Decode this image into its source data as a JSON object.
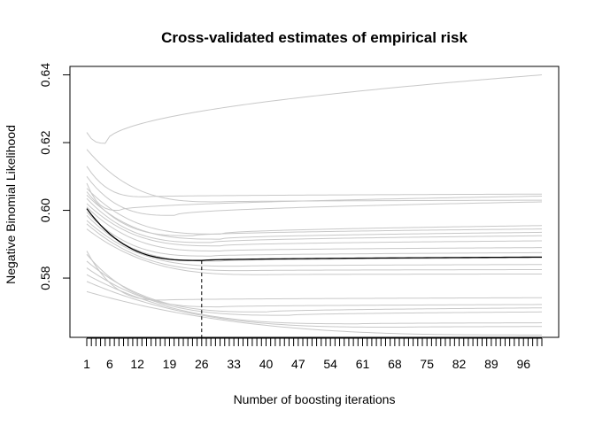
{
  "chart_data": {
    "type": "line",
    "title": "Cross-validated estimates of empirical risk",
    "xlabel": "Number of boosting iterations",
    "ylabel": "Negative Binomial Likelihood",
    "xlim": [
      1,
      100
    ],
    "ylim": [
      0.5625,
      0.6425
    ],
    "x_tick_marks_every": 1,
    "x_tick_labels": [
      1,
      6,
      12,
      19,
      26,
      33,
      40,
      47,
      54,
      61,
      68,
      75,
      82,
      89,
      96
    ],
    "y_ticks": [
      0.58,
      0.6,
      0.62,
      0.64
    ],
    "y_tick_labels": [
      "0.58",
      "0.60",
      "0.62",
      "0.64"
    ],
    "grid": false,
    "legend": "none",
    "fold_color": "#c8c8c8",
    "mean_color": "#000000",
    "optimal_mstop": 26,
    "fold_curves": [
      {
        "start": 0.623,
        "min": 0.6198,
        "min_at": 5,
        "end": 0.64
      },
      {
        "start": 0.618,
        "min": 0.6025,
        "min_at": 30,
        "end": 0.603
      },
      {
        "start": 0.613,
        "min": 0.604,
        "min_at": 14,
        "end": 0.6048
      },
      {
        "start": 0.61,
        "min": 0.5985,
        "min_at": 20,
        "end": 0.6025
      },
      {
        "start": 0.608,
        "min": 0.6,
        "min_at": 8,
        "end": 0.6042
      },
      {
        "start": 0.6065,
        "min": 0.593,
        "min_at": 30,
        "end": 0.5955
      },
      {
        "start": 0.6055,
        "min": 0.5925,
        "min_at": 24,
        "end": 0.5945
      },
      {
        "start": 0.6045,
        "min": 0.5915,
        "min_at": 30,
        "end": 0.5935
      },
      {
        "start": 0.6035,
        "min": 0.5905,
        "min_at": 28,
        "end": 0.5925
      },
      {
        "start": 0.602,
        "min": 0.5895,
        "min_at": 30,
        "end": 0.591
      },
      {
        "start": 0.601,
        "min": 0.588,
        "min_at": 30,
        "end": 0.589
      },
      {
        "start": 0.5995,
        "min": 0.5865,
        "min_at": 28,
        "end": 0.5875
      },
      {
        "start": 0.5985,
        "min": 0.585,
        "min_at": 30,
        "end": 0.586
      },
      {
        "start": 0.597,
        "min": 0.5835,
        "min_at": 34,
        "end": 0.584
      },
      {
        "start": 0.596,
        "min": 0.5822,
        "min_at": 36,
        "end": 0.5825
      },
      {
        "start": 0.5945,
        "min": 0.581,
        "min_at": 40,
        "end": 0.5812
      },
      {
        "start": 0.588,
        "min": 0.5735,
        "min_at": 18,
        "end": 0.5742
      },
      {
        "start": 0.587,
        "min": 0.5715,
        "min_at": 30,
        "end": 0.5722
      },
      {
        "start": 0.585,
        "min": 0.57,
        "min_at": 40,
        "end": 0.5712
      },
      {
        "start": 0.583,
        "min": 0.569,
        "min_at": 45,
        "end": 0.57
      },
      {
        "start": 0.581,
        "min": 0.5665,
        "min_at": 60,
        "end": 0.5668
      },
      {
        "start": 0.579,
        "min": 0.5655,
        "min_at": 70,
        "end": 0.5657
      },
      {
        "start": 0.576,
        "min": 0.5632,
        "min_at": 100,
        "end": 0.5632
      }
    ],
    "mean_curve": {
      "start": 0.6005,
      "min": 0.5852,
      "min_at": 26,
      "end": 0.5862
    }
  }
}
